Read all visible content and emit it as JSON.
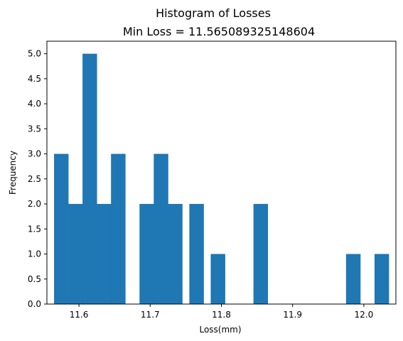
{
  "chart_data": {
    "type": "bar",
    "suptitle": "Histogram of Losses",
    "title": "Min Loss = 11.565089325148604",
    "xlabel": "Loss(mm)",
    "ylabel": "Frequency",
    "color": "#1f77b4",
    "xlim": [
      11.555,
      12.045
    ],
    "ylim": [
      0,
      5.25
    ],
    "x_ticks": [
      11.6,
      11.7,
      11.8,
      11.9,
      12.0
    ],
    "y_ticks": [
      0.0,
      0.5,
      1.0,
      1.5,
      2.0,
      2.5,
      3.0,
      3.5,
      4.0,
      4.5,
      5.0
    ],
    "grid": false,
    "bins": [
      {
        "start": 11.565,
        "end": 11.585,
        "count": 3
      },
      {
        "start": 11.585,
        "end": 11.605,
        "count": 2
      },
      {
        "start": 11.605,
        "end": 11.625,
        "count": 5
      },
      {
        "start": 11.625,
        "end": 11.645,
        "count": 2
      },
      {
        "start": 11.645,
        "end": 11.665,
        "count": 3
      },
      {
        "start": 11.685,
        "end": 11.705,
        "count": 2
      },
      {
        "start": 11.705,
        "end": 11.725,
        "count": 3
      },
      {
        "start": 11.725,
        "end": 11.745,
        "count": 2
      },
      {
        "start": 11.755,
        "end": 11.775,
        "count": 2
      },
      {
        "start": 11.785,
        "end": 11.805,
        "count": 1
      },
      {
        "start": 11.845,
        "end": 11.865,
        "count": 2
      },
      {
        "start": 11.975,
        "end": 11.995,
        "count": 1
      },
      {
        "start": 12.015,
        "end": 12.035,
        "count": 1
      }
    ]
  }
}
